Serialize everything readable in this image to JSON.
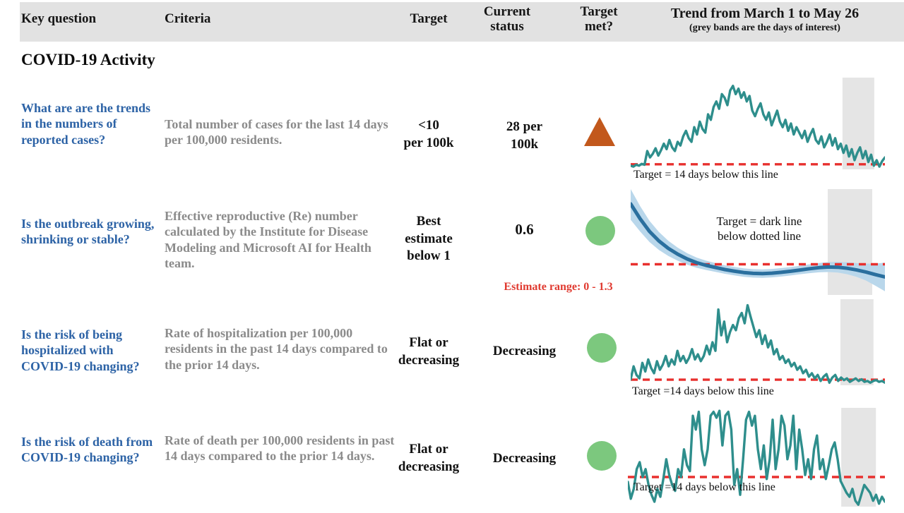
{
  "style": {
    "header_bg": "#e2e2e2",
    "question_color": "#2d63a6",
    "criteria_color": "#8b8b8b",
    "green": "#7cc87e",
    "orange": "#c2581c",
    "teal": "#2e8e8c",
    "blue_line": "#2a6f9e",
    "blue_band": "#b9d7eb",
    "target_line_color": "#e8302e",
    "grey_band_fill": "#e5e5e5",
    "note_red": "#e03a30"
  },
  "header": {
    "columns": {
      "key_question": "Key question",
      "criteria": "Criteria",
      "target": "Target",
      "current_status": "Current status",
      "target_met": "Target met?",
      "trend_title": "Trend from March 1 to May 26",
      "trend_subtitle": "(grey bands are the days of interest)"
    }
  },
  "section_title": "COVID-19 Activity",
  "rows": [
    {
      "question": "What are are the trends in the numbers of reported cases?",
      "criteria": "Total number of cases for the last 14 days per 100,000 residents.",
      "target": "<10\nper 100k",
      "status": "28 per\n100k",
      "indicator": "triangle-up-orange",
      "caption": "Target = 14 days below this line"
    },
    {
      "question": "Is the outbreak growing, shrinking or stable?",
      "criteria": "Effective reproductive (Re) number calculated by the Institute for Disease Modeling and Microsoft AI for Health team.",
      "target": "Best\nestimate\nbelow 1",
      "status": "0.6",
      "indicator": "circle-green",
      "annotation": "Target = dark line\nbelow dotted line",
      "note": "Estimate range: 0 - 1.3"
    },
    {
      "question": "Is the risk of being hospitalized with COVID-19 changing?",
      "criteria": "Rate of hospitalization per 100,000 residents in the past 14 days compared to the prior 14 days.",
      "target": "Flat or\ndecreasing",
      "status": "Decreasing",
      "indicator": "circle-green",
      "caption": "Target =14 days below this line"
    },
    {
      "question": "Is the risk of death from COVID-19 changing?",
      "criteria": "Rate of death per 100,000 residents in past 14 days compared to the prior 14 days.",
      "target": "Flat or\ndecreasing",
      "status": "Decreasing",
      "indicator": "circle-green",
      "caption": "Target =14 days below this line"
    }
  ],
  "chart_data": [
    {
      "type": "line",
      "name": "cases-trend",
      "x_range": "March 1 to May 26",
      "target_line": 5.5,
      "grey_band": {
        "start": 0.833,
        "end": 0.958
      },
      "line_color": "#2e8e8c",
      "line_width": 3.4,
      "values": [
        4,
        3,
        5,
        4,
        6,
        5,
        20,
        13,
        17,
        23,
        15,
        21,
        28,
        22,
        32,
        24,
        20,
        30,
        26,
        36,
        42,
        34,
        30,
        46,
        38,
        52,
        44,
        40,
        60,
        54,
        68,
        74,
        66,
        82,
        78,
        70,
        86,
        91,
        82,
        88,
        78,
        84,
        74,
        80,
        64,
        58,
        66,
        72,
        60,
        54,
        62,
        48,
        56,
        64,
        52,
        46,
        54,
        42,
        50,
        38,
        46,
        40,
        34,
        42,
        30,
        38,
        44,
        32,
        28,
        36,
        24,
        30,
        38,
        26,
        34,
        22,
        28,
        18,
        26,
        14,
        22,
        10,
        18,
        24,
        12,
        20,
        8,
        16,
        4,
        10,
        3,
        9,
        13
      ]
    },
    {
      "type": "line-with-confidence-band",
      "name": "re-trend",
      "x_range": "March 1 to May 26",
      "target_line": 29,
      "grey_band": {
        "start": 0.775,
        "end": 0.95
      },
      "line_color": "#2a6f9e",
      "band_color": "#b9d7eb",
      "line_width": 5,
      "values": [
        86,
        72,
        60,
        51,
        44,
        38.5,
        34,
        30.5,
        28,
        26,
        24,
        22.5,
        21.2,
        20.4,
        20.2,
        20.6,
        21.4,
        22.4,
        23.6,
        24.8,
        25.8,
        26.4,
        26.2,
        25.2,
        23.6,
        21.6,
        19.2,
        17
      ],
      "spread": [
        15,
        12,
        10,
        8.5,
        7.2,
        6.2,
        5.4,
        4.8,
        4.4,
        4.2,
        4,
        4,
        4,
        4,
        4,
        4,
        4,
        4,
        4,
        4.2,
        4.4,
        4.7,
        5,
        5.6,
        6.5,
        8,
        10.5,
        13.5
      ]
    },
    {
      "type": "line",
      "name": "hospitalization-trend",
      "x_range": "March 1 to May 26",
      "target_line": 6.5,
      "grey_band": {
        "start": 0.825,
        "end": 0.955
      },
      "line_color": "#2e8e8c",
      "line_width": 3.4,
      "values": [
        7,
        22,
        12,
        8,
        26,
        16,
        30,
        20,
        14,
        28,
        18,
        24,
        34,
        22,
        30,
        24,
        40,
        28,
        34,
        26,
        32,
        42,
        30,
        36,
        28,
        34,
        46,
        36,
        50,
        40,
        88,
        58,
        74,
        50,
        62,
        70,
        64,
        78,
        84,
        72,
        93,
        80,
        68,
        56,
        64,
        48,
        58,
        44,
        52,
        36,
        42,
        30,
        34,
        26,
        30,
        22,
        26,
        18,
        22,
        14,
        18,
        10,
        14,
        8,
        12,
        5,
        10,
        13,
        3,
        9,
        12,
        5,
        9,
        6,
        8,
        4,
        6,
        8,
        5,
        7,
        4,
        5,
        3,
        5,
        6,
        4,
        5,
        3
      ]
    },
    {
      "type": "line",
      "name": "death-trend",
      "x_range": "March 1 to May 26",
      "target_line": 30,
      "grey_band": {
        "start": 0.83,
        "end": 0.965
      },
      "line_color": "#2e8e8c",
      "line_width": 3.4,
      "values": [
        25,
        8,
        18,
        38,
        45,
        30,
        38,
        22,
        12,
        5,
        18,
        10,
        28,
        48,
        32,
        22,
        16,
        38,
        30,
        58,
        42,
        36,
        92,
        78,
        96,
        58,
        42,
        58,
        92,
        96,
        90,
        97,
        62,
        92,
        96,
        78,
        22,
        38,
        12,
        48,
        88,
        96,
        82,
        92,
        58,
        38,
        62,
        28,
        48,
        88,
        38,
        58,
        92,
        82,
        48,
        62,
        92,
        38,
        78,
        58,
        32,
        48,
        28,
        58,
        72,
        38,
        48,
        28,
        42,
        58,
        65,
        48,
        26,
        20,
        14,
        10,
        18,
        6,
        2,
        12,
        22,
        18,
        14,
        6,
        12,
        3,
        10,
        5
      ]
    }
  ]
}
